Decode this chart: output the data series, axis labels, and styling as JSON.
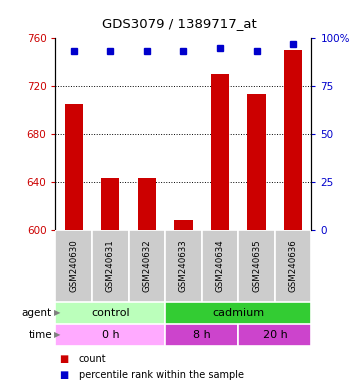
{
  "title": "GDS3079 / 1389717_at",
  "samples": [
    "GSM240630",
    "GSM240631",
    "GSM240632",
    "GSM240633",
    "GSM240634",
    "GSM240635",
    "GSM240636"
  ],
  "counts": [
    705,
    643,
    643,
    608,
    730,
    713,
    750
  ],
  "percentile_ranks": [
    93,
    93,
    93,
    93,
    95,
    93,
    97
  ],
  "ylim_left": [
    600,
    760
  ],
  "ylim_right": [
    0,
    100
  ],
  "yticks_left": [
    600,
    640,
    680,
    720,
    760
  ],
  "yticks_right": [
    0,
    25,
    50,
    75,
    100
  ],
  "bar_color": "#cc0000",
  "dot_color": "#0000cc",
  "agent_colors": [
    "#bbffbb",
    "#33cc33"
  ],
  "agent_labels": [
    "control",
    "cadmium"
  ],
  "agent_ranges": [
    [
      0,
      3
    ],
    [
      3,
      7
    ]
  ],
  "time_colors": [
    "#ffaaff",
    "#cc44cc",
    "#cc44cc"
  ],
  "time_labels": [
    "0 h",
    "8 h",
    "20 h"
  ],
  "time_ranges": [
    [
      0,
      3
    ],
    [
      3,
      5
    ],
    [
      5,
      7
    ]
  ],
  "legend_items": [
    {
      "label": "count",
      "color": "#cc0000"
    },
    {
      "label": "percentile rank within the sample",
      "color": "#0000cc"
    }
  ],
  "bar_width": 0.5
}
